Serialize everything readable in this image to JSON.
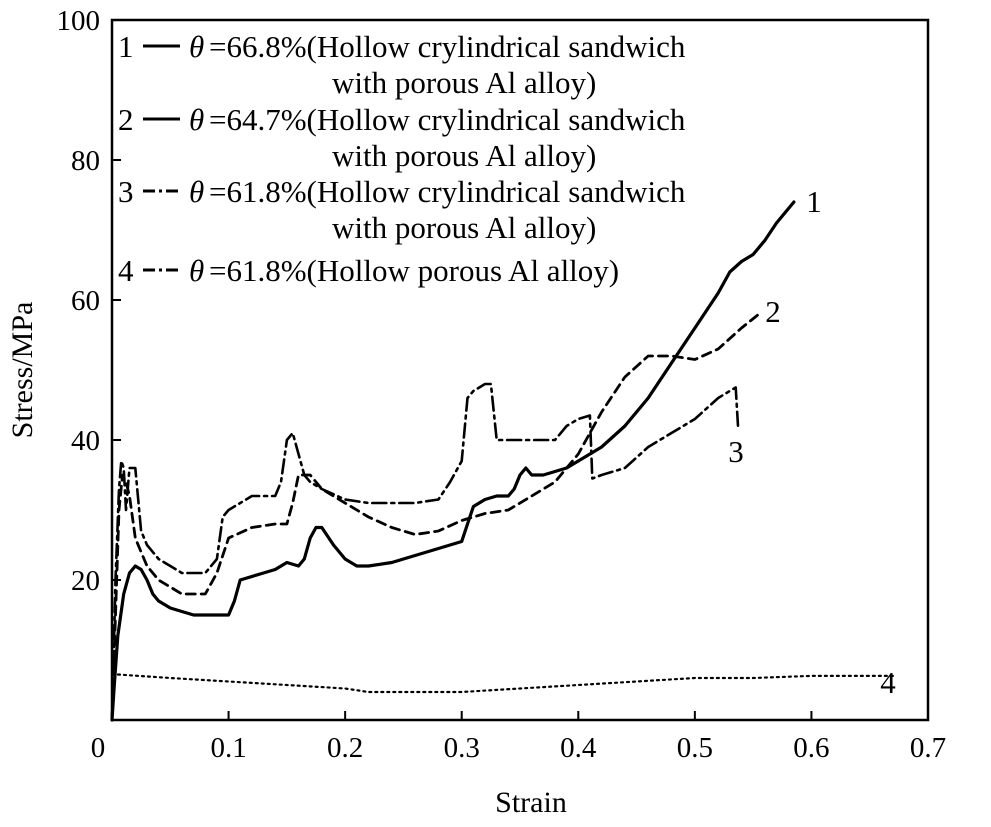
{
  "chart_data": {
    "type": "line",
    "xlabel": "Strain",
    "ylabel": "Stress/MPa",
    "xlim": [
      0,
      0.7
    ],
    "ylim": [
      0,
      100
    ],
    "x_ticks": [
      "0",
      "0.1",
      "0.2",
      "0.3",
      "0.4",
      "0.5",
      "0.6",
      "0.7"
    ],
    "y_ticks": [
      "20",
      "40",
      "60",
      "80",
      "100"
    ],
    "grid": false,
    "legend_position": "top-left",
    "legend": [
      {
        "number": "1",
        "symbol": "θ",
        "line1": "=66.8%(Hollow crylindrical sandwich",
        "line2": "with porous Al alloy)"
      },
      {
        "number": "2",
        "symbol": "θ",
        "line1": "=64.7%(Hollow crylindrical sandwich",
        "line2": "with porous Al alloy)"
      },
      {
        "number": "3",
        "symbol": "θ",
        "line1": "=61.8%(Hollow crylindrical sandwich",
        "line2": "with porous Al alloy)"
      },
      {
        "number": "4",
        "symbol": "θ",
        "line1": "=61.8%(Hollow porous Al alloy)",
        "line2": ""
      }
    ],
    "series": [
      {
        "label": "1",
        "style": "solid",
        "x": [
          0.0,
          0.002,
          0.005,
          0.01,
          0.015,
          0.02,
          0.025,
          0.03,
          0.035,
          0.04,
          0.05,
          0.06,
          0.07,
          0.08,
          0.09,
          0.1,
          0.105,
          0.11,
          0.13,
          0.14,
          0.15,
          0.16,
          0.165,
          0.17,
          0.175,
          0.18,
          0.19,
          0.2,
          0.21,
          0.22,
          0.24,
          0.26,
          0.28,
          0.3,
          0.305,
          0.31,
          0.32,
          0.33,
          0.34,
          0.345,
          0.35,
          0.355,
          0.36,
          0.37,
          0.38,
          0.39,
          0.4,
          0.42,
          0.44,
          0.46,
          0.48,
          0.5,
          0.52,
          0.53,
          0.54,
          0.55,
          0.56,
          0.57,
          0.585
        ],
        "y": [
          0,
          5,
          12,
          18,
          21,
          22,
          21.5,
          20,
          18,
          17,
          16,
          15.5,
          15,
          15,
          15,
          15,
          17,
          20,
          21,
          21.5,
          22.5,
          22,
          23,
          26,
          27.5,
          27.5,
          25,
          23,
          22,
          22,
          22.5,
          23.5,
          24.5,
          25.5,
          28,
          30.5,
          31.5,
          32,
          32,
          33,
          35,
          36,
          35,
          35,
          35.5,
          36,
          37,
          39,
          42,
          46,
          51,
          56,
          61,
          64,
          65.5,
          66.5,
          68.5,
          71,
          74
        ]
      },
      {
        "label": "2",
        "style": "dashed",
        "x": [
          0.0,
          0.003,
          0.006,
          0.009,
          0.012,
          0.015,
          0.02,
          0.025,
          0.03,
          0.04,
          0.05,
          0.06,
          0.07,
          0.08,
          0.09,
          0.1,
          0.12,
          0.14,
          0.15,
          0.155,
          0.16,
          0.17,
          0.18,
          0.2,
          0.22,
          0.24,
          0.26,
          0.28,
          0.3,
          0.32,
          0.34,
          0.36,
          0.38,
          0.4,
          0.42,
          0.44,
          0.46,
          0.48,
          0.5,
          0.52,
          0.54,
          0.555
        ],
        "y": [
          0,
          15,
          30,
          35,
          34,
          32,
          26,
          24,
          22,
          20,
          19,
          18,
          18,
          18,
          21,
          26,
          27.5,
          28,
          28,
          31,
          35,
          35,
          33,
          31,
          29,
          27.5,
          26.5,
          27,
          28.5,
          29.5,
          30,
          32,
          34,
          38,
          44,
          49,
          52,
          52,
          51.5,
          53,
          56,
          58
        ]
      },
      {
        "label": "3",
        "style": "dash-dot",
        "x": [
          0.0,
          0.003,
          0.006,
          0.008,
          0.01,
          0.012,
          0.015,
          0.018,
          0.02,
          0.025,
          0.03,
          0.04,
          0.05,
          0.06,
          0.07,
          0.08,
          0.09,
          0.095,
          0.1,
          0.12,
          0.14,
          0.145,
          0.15,
          0.155,
          0.16,
          0.165,
          0.17,
          0.18,
          0.2,
          0.22,
          0.24,
          0.26,
          0.28,
          0.29,
          0.3,
          0.305,
          0.31,
          0.32,
          0.325,
          0.33,
          0.34,
          0.36,
          0.38,
          0.39,
          0.4,
          0.41,
          0.412,
          0.42,
          0.44,
          0.46,
          0.48,
          0.5,
          0.52,
          0.53,
          0.535,
          0.537
        ],
        "y": [
          0,
          20,
          33,
          37,
          36,
          30,
          36,
          36,
          36,
          27,
          25,
          23,
          22,
          21,
          21,
          21,
          23,
          29,
          30,
          32,
          32,
          34,
          40,
          41,
          38,
          35,
          34,
          33,
          31.5,
          31,
          31,
          31,
          31.5,
          34,
          37,
          46,
          47,
          48,
          48,
          40,
          40,
          40,
          40,
          42,
          43,
          43.5,
          34.5,
          35,
          36,
          39,
          41,
          43,
          46,
          47,
          47.5,
          42
        ]
      },
      {
        "label": "4",
        "style": "dotted",
        "x": [
          0.0,
          0.005,
          0.05,
          0.1,
          0.15,
          0.2,
          0.22,
          0.26,
          0.3,
          0.35,
          0.4,
          0.45,
          0.5,
          0.55,
          0.6,
          0.65,
          0.67
        ],
        "y": [
          6.5,
          6.5,
          6,
          5.5,
          5,
          4.5,
          4,
          4,
          4,
          4.5,
          5,
          5.5,
          6,
          6,
          6.3,
          6.3,
          6.3
        ]
      }
    ],
    "end_labels": [
      "1",
      "2",
      "3",
      "4"
    ]
  }
}
